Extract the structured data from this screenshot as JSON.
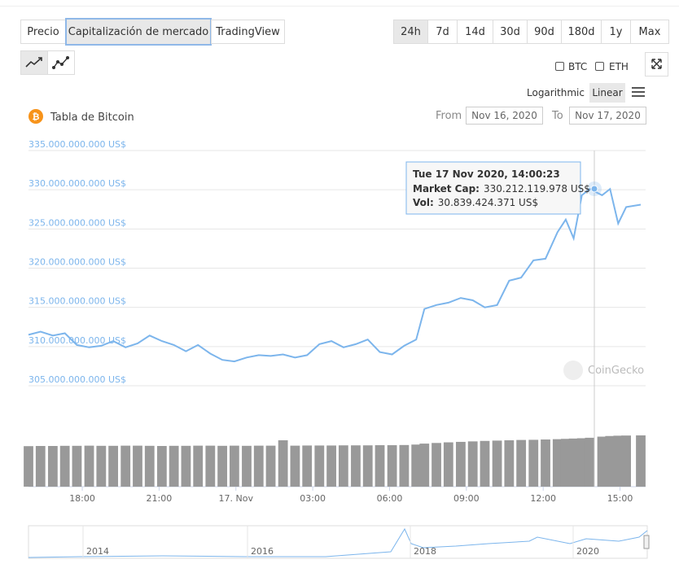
{
  "ui": {
    "tabs": [
      "Precio",
      "Capitalización de mercado",
      "TradingView"
    ],
    "ranges": [
      "24h",
      "7d",
      "14d",
      "30d",
      "90d",
      "180d",
      "1y",
      "Max"
    ],
    "compare": [
      "BTC",
      "ETH"
    ],
    "scales": [
      "Logarithmic",
      "Linear"
    ],
    "chart_title": "Tabla de Bitcoin",
    "from_label": "From",
    "from_date": "Nov 16, 2020",
    "to_label": "To",
    "to_date": "Nov 17, 2020",
    "watermark": "CoinGecko",
    "navigator_labels": [
      "2014",
      "2016",
      "2018",
      "2020"
    ]
  },
  "chart_data": {
    "type": "line",
    "grid": true,
    "log_scale": false,
    "x": [
      15.9,
      16.37,
      16.85,
      17.32,
      17.79,
      18.27,
      18.74,
      19.21,
      19.69,
      20.16,
      20.63,
      21.11,
      21.58,
      22.05,
      22.52,
      23.0,
      23.47,
      23.94,
      24.42,
      24.89,
      25.36,
      25.84,
      26.31,
      26.78,
      27.26,
      27.73,
      28.2,
      28.68,
      29.15,
      29.62,
      30.1,
      30.57,
      31.04,
      31.36,
      31.83,
      32.3,
      32.78,
      33.25,
      33.72,
      34.2,
      34.67,
      35.14,
      35.62,
      36.09,
      36.56,
      36.88,
      37.19,
      37.51,
      37.82,
      38.3,
      38.61,
      38.93,
      39.24,
      39.81
    ],
    "xlim": [
      15.9,
      40
    ],
    "xticks": [
      {
        "value": 18,
        "label": "18:00"
      },
      {
        "value": 21,
        "label": "21:00"
      },
      {
        "value": 24,
        "label": "17. Nov"
      },
      {
        "value": 27,
        "label": "03:00"
      },
      {
        "value": 30,
        "label": "06:00"
      },
      {
        "value": 33,
        "label": "09:00"
      },
      {
        "value": 36,
        "label": "12:00"
      },
      {
        "value": 39,
        "label": "15:00"
      }
    ],
    "ylim": [
      305000000000,
      335000000000
    ],
    "yticks": [
      {
        "value": 305000000000,
        "label": "305.000.000.000 US$"
      },
      {
        "value": 310000000000,
        "label": "310.000.000.000 US$"
      },
      {
        "value": 315000000000,
        "label": "315.000.000.000 US$"
      },
      {
        "value": 320000000000,
        "label": "320.000.000.000 US$"
      },
      {
        "value": 325000000000,
        "label": "325.000.000.000 US$"
      },
      {
        "value": 330000000000,
        "label": "330.000.000.000 US$"
      },
      {
        "value": 335000000000,
        "label": "335.000.000.000 US$"
      }
    ],
    "y2lim": [
      0,
      65800000000
    ],
    "series": [
      {
        "color": "#7cb5ec",
        "values": [
          311500000000,
          311900000000,
          311400000000,
          311700000000,
          310200000000,
          309900000000,
          310100000000,
          310700000000,
          309900000000,
          310400000000,
          311400000000,
          310700000000,
          310200000000,
          309400000000,
          310200000000,
          309100000000,
          308300000000,
          308100000000,
          308600000000,
          308900000000,
          308800000000,
          309000000000,
          308600000000,
          308900000000,
          310300000000,
          310700000000,
          309900000000,
          310300000000,
          310900000000,
          309300000000,
          309000000000,
          310100000000,
          310900000000,
          314800000000,
          315300000000,
          315600000000,
          316200000000,
          315900000000,
          315000000000,
          315300000000,
          318400000000,
          318800000000,
          321000000000,
          321200000000,
          324600000000,
          326200000000,
          323800000000,
          329300000000,
          330100000000,
          329300000000,
          330100000000,
          325700000000,
          327800000000,
          328100000000
        ]
      },
      {
        "type": "bar",
        "axis": "y2",
        "color": "#999999",
        "values": [
          25600000000,
          25700000000,
          25700000000,
          25800000000,
          25800000000,
          25900000000,
          25800000000,
          25800000000,
          25900000000,
          25900000000,
          25800000000,
          25700000000,
          25800000000,
          25800000000,
          25900000000,
          25900000000,
          25800000000,
          25900000000,
          25800000000,
          25900000000,
          25900000000,
          29300000000,
          25900000000,
          26000000000,
          26000000000,
          26000000000,
          26100000000,
          26100000000,
          26100000000,
          26200000000,
          26200000000,
          26300000000,
          26600000000,
          27200000000,
          27600000000,
          28000000000,
          28300000000,
          28600000000,
          28900000000,
          29100000000,
          29300000000,
          29500000000,
          29600000000,
          29800000000,
          30000000000,
          30200000000,
          30400000000,
          30600000000,
          30900000000,
          31600000000,
          32000000000,
          32200000000,
          32300000000,
          32400000000
        ]
      }
    ],
    "tooltip": {
      "title": "Tue 17 Nov 2020, 14:00:23",
      "rows": [
        {
          "label": "Market Cap:",
          "value": "330.212.119.978 US$"
        },
        {
          "label": "Vol:",
          "value": "30.839.424.371 US$"
        }
      ]
    }
  }
}
